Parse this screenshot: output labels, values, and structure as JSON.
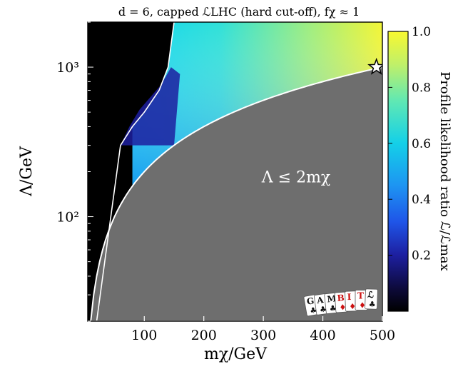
{
  "chart_data": {
    "type": "heatmap",
    "title": "d = 6, capped ℒLHC (hard cut-off), fχ ≈ 1",
    "xlabel": "mχ/GeV",
    "ylabel": "Λ/GeV",
    "xlim": [
      5,
      500
    ],
    "ylim": [
      20,
      2000
    ],
    "yscale": "log",
    "x_ticks": [
      {
        "value": 100,
        "label": "100"
      },
      {
        "value": 200,
        "label": "200"
      },
      {
        "value": 300,
        "label": "300"
      },
      {
        "value": 400,
        "label": "400"
      },
      {
        "value": 500,
        "label": "500"
      }
    ],
    "y_ticks": [
      {
        "value": 100,
        "label": "10²"
      },
      {
        "value": 1000,
        "label": "10³"
      }
    ],
    "colorbar": {
      "label": "Profile likelihood ratio ℒ/ℒmax",
      "range": [
        0,
        1
      ],
      "ticks": [
        {
          "value": 0.2,
          "label": "0.2"
        },
        {
          "value": 0.4,
          "label": "0.4"
        },
        {
          "value": 0.6,
          "label": "0.6"
        },
        {
          "value": 0.8,
          "label": "0.8"
        },
        {
          "value": 1.0,
          "label": "1.0"
        }
      ]
    },
    "excluded_region": {
      "condition": "Λ ≤ 2mχ",
      "label": "Λ ≤ 2mχ",
      "color": "#6e6e6e"
    },
    "best_fit_point": {
      "x": 490,
      "y": 1000,
      "marker": "star"
    },
    "allowed_band_left_edge_x": [
      150,
      140,
      125,
      100,
      80,
      60,
      20
    ],
    "allowed_band_left_edge_y": [
      2000,
      1000,
      700,
      500,
      400,
      300,
      20
    ],
    "colors": {
      "excluded": "#6e6e6e",
      "background_low": "#000000",
      "contour": "#ffffff"
    },
    "logo": {
      "cards": [
        "G",
        "A",
        "M",
        "B",
        "I",
        "T",
        "ℒ"
      ]
    }
  }
}
